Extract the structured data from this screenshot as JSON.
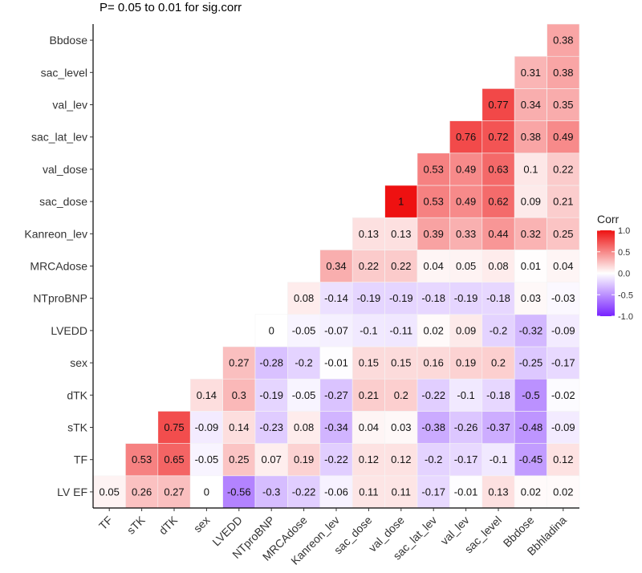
{
  "chart_data": {
    "type": "heatmap",
    "title": "P= 0.05 to 0.01 for sig.corr",
    "x_categories": [
      "TF",
      "sTK",
      "dTK",
      "sex",
      "LVEDD",
      "NTproBNP",
      "MRCAdose",
      "Kanreon_lev",
      "sac_dose",
      "val_dose",
      "sac_lat_lev",
      "val_lev",
      "sac_level",
      "Bbdose",
      "Bbhladina"
    ],
    "y_categories": [
      "LV EF",
      "TF",
      "sTK",
      "dTK",
      "sex",
      "LVEDD",
      "NTproBNP",
      "MRCAdose",
      "Kanreon_lev",
      "sac_dose",
      "val_dose",
      "sac_lat_lev",
      "val_lev",
      "sac_level",
      "Bbdose"
    ],
    "values": [
      [
        0.05,
        0.26,
        0.27,
        0,
        -0.56,
        -0.3,
        -0.22,
        -0.06,
        0.11,
        0.11,
        -0.17,
        -0.01,
        0.13,
        0.02,
        0.02
      ],
      [
        null,
        0.53,
        0.65,
        -0.05,
        0.25,
        0.07,
        0.19,
        -0.22,
        0.12,
        0.12,
        -0.2,
        -0.17,
        -0.1,
        -0.45,
        0.12
      ],
      [
        null,
        null,
        0.75,
        -0.09,
        0.14,
        -0.23,
        0.08,
        -0.34,
        0.04,
        0.03,
        -0.38,
        -0.26,
        -0.37,
        -0.48,
        -0.09
      ],
      [
        null,
        null,
        null,
        0.14,
        0.3,
        -0.19,
        -0.05,
        -0.27,
        0.21,
        0.2,
        -0.22,
        -0.1,
        -0.18,
        -0.5,
        -0.02
      ],
      [
        null,
        null,
        null,
        null,
        0.27,
        -0.28,
        -0.2,
        -0.01,
        0.15,
        0.15,
        0.16,
        0.19,
        0.2,
        -0.25,
        -0.17
      ],
      [
        null,
        null,
        null,
        null,
        null,
        0,
        -0.05,
        -0.07,
        -0.1,
        -0.11,
        0.02,
        0.09,
        -0.2,
        -0.32,
        -0.09
      ],
      [
        null,
        null,
        null,
        null,
        null,
        null,
        0.08,
        -0.14,
        -0.19,
        -0.19,
        -0.18,
        -0.19,
        -0.18,
        0.03,
        -0.03
      ],
      [
        null,
        null,
        null,
        null,
        null,
        null,
        null,
        0.34,
        0.22,
        0.22,
        0.04,
        0.05,
        0.08,
        0.01,
        0.04
      ],
      [
        null,
        null,
        null,
        null,
        null,
        null,
        null,
        null,
        0.13,
        0.13,
        0.39,
        0.33,
        0.44,
        0.32,
        0.25
      ],
      [
        null,
        null,
        null,
        null,
        null,
        null,
        null,
        null,
        null,
        1,
        0.53,
        0.49,
        0.62,
        0.09,
        0.21
      ],
      [
        null,
        null,
        null,
        null,
        null,
        null,
        null,
        null,
        null,
        null,
        0.53,
        0.49,
        0.63,
        0.1,
        0.22
      ],
      [
        null,
        null,
        null,
        null,
        null,
        null,
        null,
        null,
        null,
        null,
        null,
        0.76,
        0.72,
        0.38,
        0.49
      ],
      [
        null,
        null,
        null,
        null,
        null,
        null,
        null,
        null,
        null,
        null,
        null,
        null,
        0.77,
        0.34,
        0.35
      ],
      [
        null,
        null,
        null,
        null,
        null,
        null,
        null,
        null,
        null,
        null,
        null,
        null,
        null,
        0.31,
        0.38
      ],
      [
        null,
        null,
        null,
        null,
        null,
        null,
        null,
        null,
        null,
        null,
        null,
        null,
        null,
        null,
        0.38
      ]
    ],
    "value_range": [
      -1,
      1
    ],
    "legend": {
      "title": "Corr",
      "position": "right",
      "ticks": [
        "1.0",
        "0.5",
        "0.0",
        "-0.5",
        "-1.0"
      ],
      "tick_values": [
        1,
        0.5,
        0,
        -0.5,
        -1
      ]
    },
    "colors": {
      "high": "#ee1111",
      "mid": "#ffffff",
      "low": "#7722ff"
    },
    "grid": false
  }
}
